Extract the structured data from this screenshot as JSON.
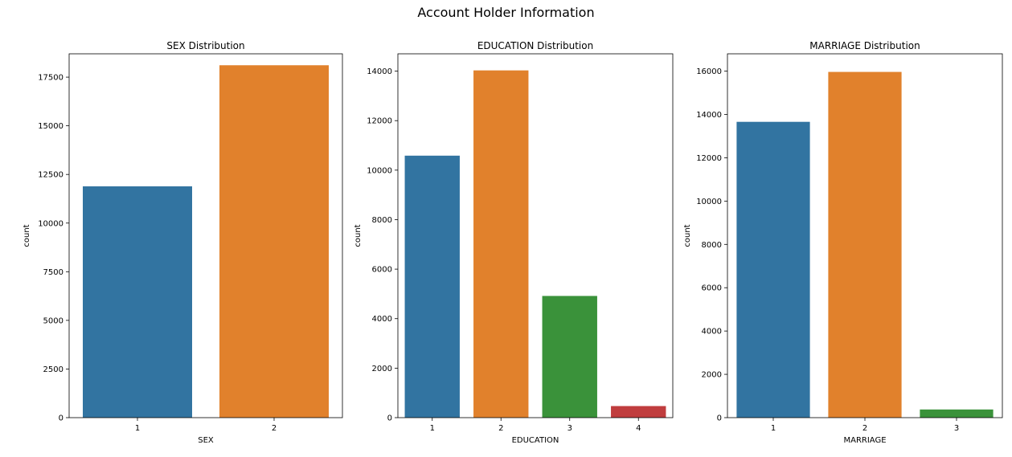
{
  "suptitle": "Account Holder Information",
  "colors": [
    "#3274a1",
    "#e1812c",
    "#3a923a",
    "#c03d3e"
  ],
  "chart_data": [
    {
      "type": "bar",
      "title": "SEX Distribution",
      "xlabel": "SEX",
      "ylabel": "count",
      "categories": [
        "1",
        "2"
      ],
      "values": [
        11888,
        18112
      ],
      "ylim": [
        0,
        18700
      ],
      "yticks": [
        0,
        2500,
        5000,
        7500,
        10000,
        12500,
        15000,
        17500
      ],
      "grid": false
    },
    {
      "type": "bar",
      "title": "EDUCATION Distribution",
      "xlabel": "EDUCATION",
      "ylabel": "count",
      "categories": [
        "1",
        "2",
        "3",
        "4"
      ],
      "values": [
        10585,
        14030,
        4917,
        468
      ],
      "ylim": [
        0,
        14700
      ],
      "yticks": [
        0,
        2000,
        4000,
        6000,
        8000,
        10000,
        12000,
        14000
      ],
      "grid": false
    },
    {
      "type": "bar",
      "title": "MARRIAGE Distribution",
      "xlabel": "MARRIAGE",
      "ylabel": "count",
      "categories": [
        "1",
        "2",
        "3"
      ],
      "values": [
        13659,
        15964,
        377
      ],
      "ylim": [
        0,
        16800
      ],
      "yticks": [
        0,
        2000,
        4000,
        6000,
        8000,
        10000,
        12000,
        14000,
        16000
      ],
      "grid": false
    }
  ]
}
